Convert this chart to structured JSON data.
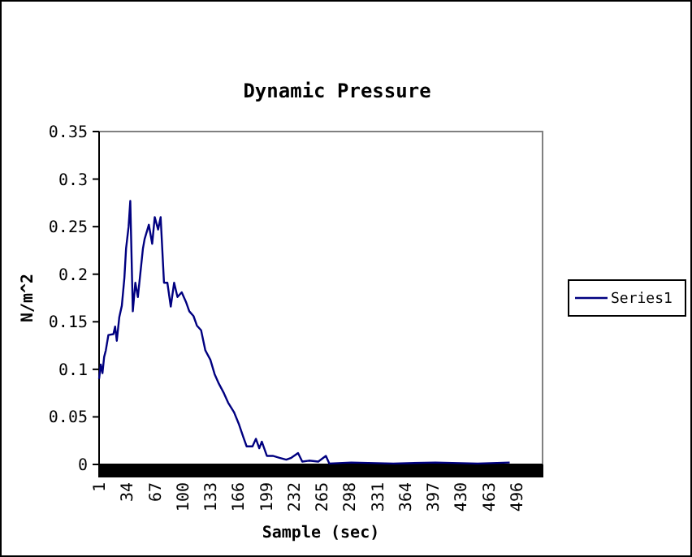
{
  "chart_data": {
    "type": "line",
    "title": "Dynamic Pressure",
    "xlabel": "Sample (sec)",
    "ylabel": "N/m^2",
    "xlim": [
      1,
      527
    ],
    "xticks": [
      1,
      34,
      67,
      100,
      133,
      166,
      199,
      232,
      265,
      298,
      331,
      364,
      397,
      430,
      463,
      496
    ],
    "ylim": [
      0,
      0.35
    ],
    "yticks": [
      0,
      0.05,
      0.1,
      0.15,
      0.2,
      0.25,
      0.3,
      0.35
    ],
    "grid": false,
    "legend": "right",
    "marker": "none",
    "line_style": "solid",
    "series": [
      {
        "name": "Series1",
        "color": "#000080",
        "x": [
          1,
          3,
          5,
          7,
          9,
          12,
          18,
          20,
          22,
          25,
          28,
          31,
          33,
          36,
          38,
          41,
          44,
          47,
          53,
          55,
          60,
          64,
          67,
          71,
          74,
          78,
          82,
          86,
          90,
          94,
          99,
          104,
          108,
          113,
          117,
          122,
          127,
          133,
          138,
          143,
          149,
          154,
          161,
          167,
          172,
          176,
          183,
          187,
          191,
          194,
          200,
          207,
          215,
          223,
          229,
          237,
          242,
          250,
          261,
          270,
          274,
          300,
          350,
          400,
          450,
          488
        ],
        "values": [
          0.09,
          0.105,
          0.096,
          0.113,
          0.12,
          0.136,
          0.137,
          0.145,
          0.13,
          0.155,
          0.167,
          0.196,
          0.227,
          0.25,
          0.277,
          0.161,
          0.191,
          0.176,
          0.227,
          0.237,
          0.252,
          0.232,
          0.26,
          0.247,
          0.26,
          0.191,
          0.191,
          0.166,
          0.191,
          0.176,
          0.181,
          0.171,
          0.161,
          0.156,
          0.146,
          0.141,
          0.12,
          0.11,
          0.095,
          0.085,
          0.075,
          0.065,
          0.055,
          0.042,
          0.029,
          0.019,
          0.019,
          0.027,
          0.017,
          0.024,
          0.009,
          0.009,
          0.007,
          0.005,
          0.007,
          0.012,
          0.003,
          0.004,
          0.003,
          0.009,
          0.001,
          0.002,
          0.001,
          0.002,
          0.001,
          0.002
        ]
      }
    ]
  }
}
